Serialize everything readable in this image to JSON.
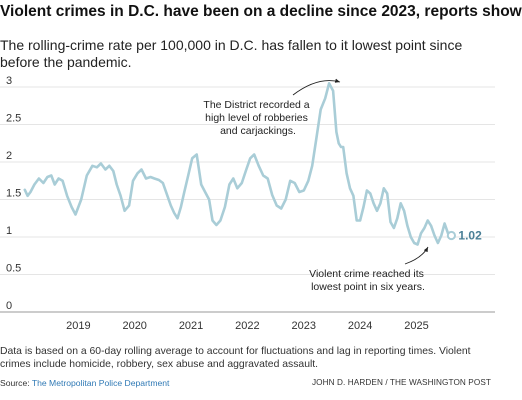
{
  "headline": "Violent crimes in D.C. have been on a decline since 2023, reports show",
  "dek": "The rolling-crime rate per 100,000 in D.C. has fallen to it lowest point since before the pandemic.",
  "footnote": "Data is based on a 60-day rolling average to account for fluctuations and lag in reporting times. Violent crimes include homicide, robbery, sex abuse and aggravated assault.",
  "source_prefix": "Source: ",
  "source_name": "The Metropolitan Police Department",
  "credit": "JOHN D. HARDEN / THE WASHINGTON POST",
  "chart_data": {
    "type": "line",
    "title": "",
    "xlabel": "",
    "ylabel": "",
    "ylim": [
      0,
      3.2
    ],
    "xlim": [
      2018.0,
      2025.95
    ],
    "y_ticks": [
      0,
      0.5,
      1,
      1.5,
      2,
      2.5,
      3
    ],
    "y_tick_labels": [
      "0",
      "0.5",
      "1",
      "1.5",
      "2",
      "2.5",
      "3"
    ],
    "x_tick_labels": [
      "2019",
      "2020",
      "2021",
      "2022",
      "2023",
      "2024",
      "2025"
    ],
    "x_tick_values": [
      2019,
      2020,
      2021,
      2022,
      2023,
      2024,
      2025
    ],
    "grid": "horizontal",
    "line_color": "#a9cdd7",
    "end_label": "1.02",
    "series": [
      {
        "x": [
          2018.05,
          2018.1,
          2018.15,
          2018.22,
          2018.3,
          2018.38,
          2018.45,
          2018.52,
          2018.58,
          2018.65,
          2018.72,
          2018.8,
          2018.88,
          2018.95,
          2019.05,
          2019.15,
          2019.25,
          2019.33,
          2019.4,
          2019.48,
          2019.55,
          2019.62,
          2019.68,
          2019.75,
          2019.82,
          2019.9,
          2019.97,
          2020.05,
          2020.12,
          2020.2,
          2020.28,
          2020.35,
          2020.43,
          2020.5,
          2020.58,
          2020.64,
          2020.7,
          2020.76,
          2020.82,
          2020.88,
          2020.95,
          2021.02,
          2021.1,
          2021.18,
          2021.25,
          2021.32,
          2021.38,
          2021.45,
          2021.52,
          2021.6,
          2021.68,
          2021.75,
          2021.82,
          2021.9,
          2021.98,
          2022.05,
          2022.12,
          2022.2,
          2022.28,
          2022.36,
          2022.44,
          2022.52,
          2022.6,
          2022.68,
          2022.76,
          2022.84,
          2022.92,
          2023.0,
          2023.08,
          2023.15,
          2023.22,
          2023.3,
          2023.38,
          2023.45,
          2023.52,
          2023.58,
          2023.62,
          2023.66,
          2023.7,
          2023.76,
          2023.82,
          2023.88,
          2023.94,
          2024.0,
          2024.06,
          2024.12,
          2024.18,
          2024.24,
          2024.3,
          2024.36,
          2024.42,
          2024.48,
          2024.54,
          2024.6,
          2024.66,
          2024.72,
          2024.78,
          2024.84,
          2024.9,
          2024.96,
          2025.02,
          2025.08,
          2025.14,
          2025.2,
          2025.26,
          2025.32,
          2025.38,
          2025.44,
          2025.5,
          2025.56,
          2025.62
        ],
        "values": [
          1.63,
          1.55,
          1.6,
          1.7,
          1.78,
          1.72,
          1.8,
          1.82,
          1.7,
          1.78,
          1.75,
          1.55,
          1.4,
          1.3,
          1.5,
          1.82,
          1.95,
          1.93,
          1.98,
          1.9,
          1.95,
          1.88,
          1.7,
          1.55,
          1.35,
          1.42,
          1.75,
          1.85,
          1.9,
          1.78,
          1.8,
          1.78,
          1.76,
          1.72,
          1.55,
          1.42,
          1.32,
          1.25,
          1.4,
          1.6,
          1.82,
          2.05,
          2.1,
          1.7,
          1.6,
          1.5,
          1.22,
          1.16,
          1.22,
          1.4,
          1.7,
          1.78,
          1.65,
          1.72,
          1.9,
          2.05,
          2.1,
          1.95,
          1.82,
          1.78,
          1.56,
          1.42,
          1.38,
          1.5,
          1.75,
          1.72,
          1.6,
          1.62,
          1.75,
          1.95,
          2.3,
          2.7,
          2.85,
          3.05,
          2.95,
          2.4,
          2.25,
          2.2,
          2.2,
          1.85,
          1.65,
          1.55,
          1.22,
          1.22,
          1.4,
          1.62,
          1.58,
          1.45,
          1.35,
          1.45,
          1.65,
          1.58,
          1.2,
          1.12,
          1.25,
          1.45,
          1.35,
          1.15,
          1.0,
          0.92,
          0.9,
          1.05,
          1.12,
          1.22,
          1.15,
          1.02,
          0.92,
          1.02,
          1.18,
          1.05,
          1.02
        ]
      }
    ],
    "annotations": [
      {
        "lines": [
          "The District recorded a",
          "high level of robberies",
          "and carjackings."
        ]
      },
      {
        "lines": [
          "Violent crime reached its",
          "lowest point in six years."
        ]
      }
    ]
  }
}
